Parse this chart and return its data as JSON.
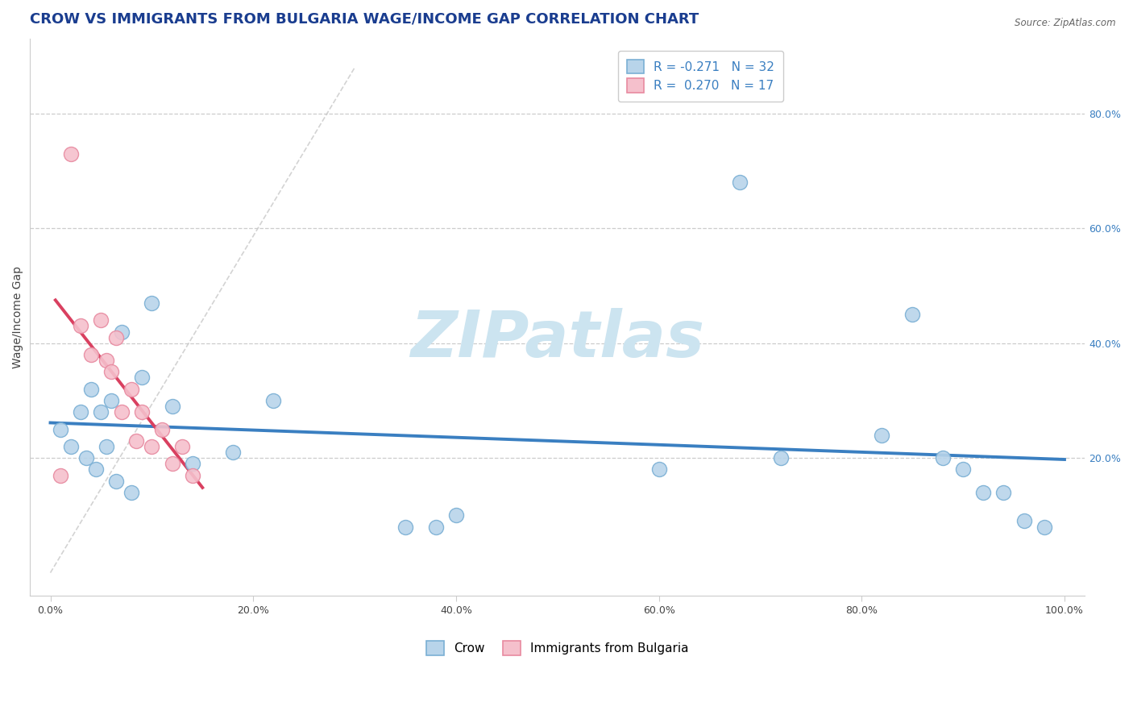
{
  "title": "CROW VS IMMIGRANTS FROM BULGARIA WAGE/INCOME GAP CORRELATION CHART",
  "source_text": "Source: ZipAtlas.com",
  "ylabel": "Wage/Income Gap",
  "xlim": [
    -0.02,
    1.02
  ],
  "ylim": [
    -0.04,
    0.93
  ],
  "x_ticks": [
    0.0,
    0.2,
    0.4,
    0.6,
    0.8,
    1.0
  ],
  "x_tick_labels": [
    "0.0%",
    "20.0%",
    "40.0%",
    "60.0%",
    "80.0%",
    "100.0%"
  ],
  "y_ticks_right": [
    0.2,
    0.4,
    0.6,
    0.8
  ],
  "y_tick_labels_right": [
    "20.0%",
    "40.0%",
    "60.0%",
    "80.0%"
  ],
  "crow_color": "#b8d4ea",
  "crow_edge_color": "#7aafd4",
  "bulgaria_color": "#f5c0cc",
  "bulgaria_edge_color": "#e88aa0",
  "trend_crow_color": "#3a7fc1",
  "trend_bulgaria_color": "#d94060",
  "R_crow": -0.271,
  "N_crow": 32,
  "R_bulgaria": 0.27,
  "N_bulgaria": 17,
  "crow_x": [
    0.01,
    0.02,
    0.03,
    0.035,
    0.04,
    0.045,
    0.05,
    0.055,
    0.06,
    0.065,
    0.07,
    0.08,
    0.09,
    0.1,
    0.12,
    0.14,
    0.18,
    0.22,
    0.35,
    0.38,
    0.4,
    0.6,
    0.68,
    0.72,
    0.82,
    0.85,
    0.88,
    0.9,
    0.92,
    0.94,
    0.96,
    0.98
  ],
  "crow_y": [
    0.25,
    0.22,
    0.28,
    0.2,
    0.32,
    0.18,
    0.28,
    0.22,
    0.3,
    0.16,
    0.42,
    0.14,
    0.34,
    0.47,
    0.29,
    0.19,
    0.21,
    0.3,
    0.08,
    0.08,
    0.1,
    0.18,
    0.68,
    0.2,
    0.24,
    0.45,
    0.2,
    0.18,
    0.14,
    0.14,
    0.09,
    0.08
  ],
  "bulgaria_x": [
    0.01,
    0.02,
    0.03,
    0.04,
    0.05,
    0.055,
    0.06,
    0.065,
    0.07,
    0.08,
    0.085,
    0.09,
    0.1,
    0.11,
    0.12,
    0.13,
    0.14
  ],
  "bulgaria_y": [
    0.17,
    0.73,
    0.43,
    0.38,
    0.44,
    0.37,
    0.35,
    0.41,
    0.28,
    0.32,
    0.23,
    0.28,
    0.22,
    0.25,
    0.19,
    0.22,
    0.17
  ],
  "background_color": "#ffffff",
  "grid_color": "#cccccc",
  "watermark_text": "ZIPatlas",
  "watermark_color": "#cce4f0",
  "title_color": "#1a3d8f",
  "legend_label_crow": "Crow",
  "legend_label_bulgaria": "Immigrants from Bulgaria",
  "title_fontsize": 13,
  "axis_label_fontsize": 10,
  "tick_fontsize": 9,
  "marker_size": 13,
  "diag_line_color": "#cccccc"
}
